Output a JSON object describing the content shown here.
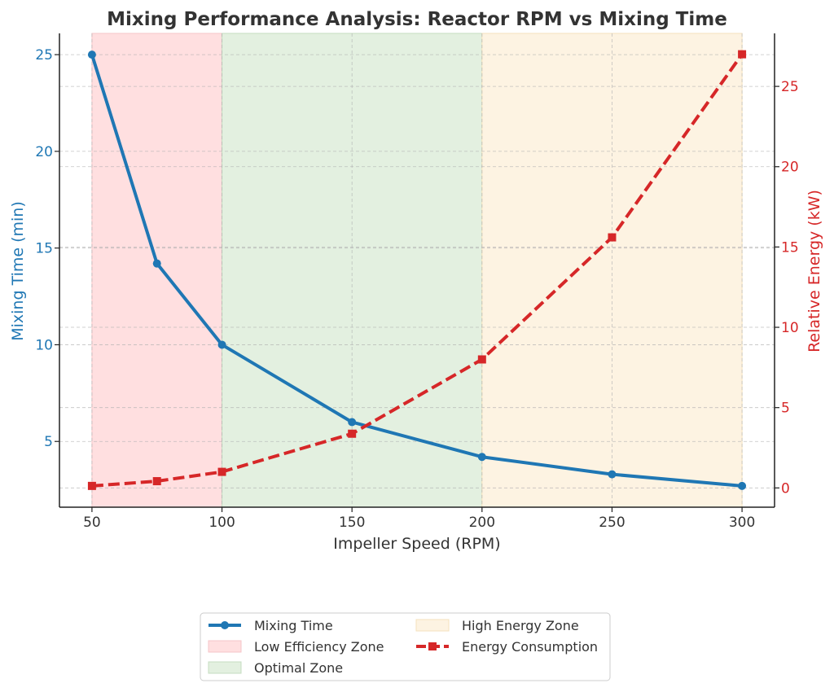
{
  "chart_data": {
    "type": "line",
    "title": "Mixing Performance Analysis: Reactor RPM vs Mixing Time",
    "xlabel": "Impeller Speed (RPM)",
    "ylabel_left": "Mixing Time (min)",
    "ylabel_right": "Relative Energy (kW)",
    "x": [
      50,
      75,
      100,
      150,
      200,
      250,
      300
    ],
    "xlim": [
      37.5,
      312.5
    ],
    "ylim_left": [
      1.6,
      26.1
    ],
    "ylim_right": [
      -1.2,
      28.3
    ],
    "x_ticks": [
      50,
      100,
      150,
      200,
      250,
      300
    ],
    "y_left_ticks": [
      5,
      10,
      15,
      20,
      25
    ],
    "y_right_ticks": [
      0,
      5,
      10,
      15,
      20,
      25
    ],
    "grid": true,
    "legend_position": "bottom-center",
    "series": [
      {
        "name": "Mixing Time",
        "axis": "left",
        "color": "#1f77b4",
        "marker": "circle",
        "style": "solid",
        "values": [
          25.0,
          14.2,
          10.0,
          6.0,
          4.2,
          3.3,
          2.7
        ]
      },
      {
        "name": "Energy Consumption",
        "axis": "right",
        "color": "#d62728",
        "marker": "square",
        "style": "dashed",
        "values": [
          0.125,
          0.42,
          1.0,
          3.375,
          8.0,
          15.6,
          27.0
        ]
      }
    ],
    "zones": [
      {
        "name": "Low Efficiency Zone",
        "from": 50,
        "to": 100,
        "color": "#ffdfe0",
        "border": "#f6c6c8"
      },
      {
        "name": "Optimal Zone",
        "from": 100,
        "to": 200,
        "color": "#e3f0e0",
        "border": "#c4dcc0"
      },
      {
        "name": "High Energy Zone",
        "from": 200,
        "to": 300,
        "color": "#fdf3e2",
        "border": "#f5e2bd"
      }
    ],
    "legend": [
      {
        "label": "Mixing Time",
        "kind": "line",
        "ref": "Mixing Time"
      },
      {
        "label": "Low Efficiency Zone",
        "kind": "patch",
        "ref": "Low Efficiency Zone"
      },
      {
        "label": "Optimal Zone",
        "kind": "patch",
        "ref": "Optimal Zone"
      },
      {
        "label": "High Energy Zone",
        "kind": "patch",
        "ref": "High Energy Zone"
      },
      {
        "label": "Energy Consumption",
        "kind": "line",
        "ref": "Energy Consumption"
      }
    ],
    "colors": {
      "left_axis": "#1f77b4",
      "right_axis": "#d62728",
      "text": "#333333",
      "grid": "#b0b0b0"
    }
  }
}
